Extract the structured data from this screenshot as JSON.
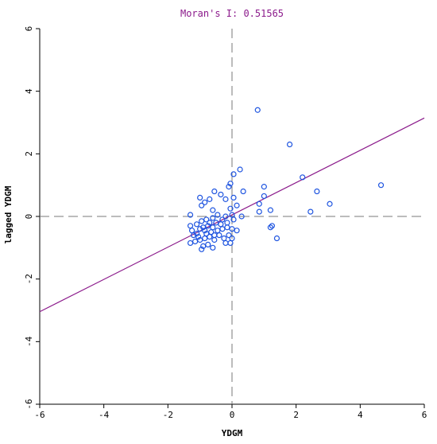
{
  "chart_data": {
    "type": "scatter",
    "title": "Moran's I: 0.51565",
    "xlabel": "YDGM",
    "ylabel": "lagged YDGM",
    "xlim": [
      -6,
      6
    ],
    "ylim": [
      -6,
      6
    ],
    "xticks": [
      -6,
      -4,
      -2,
      0,
      2,
      4,
      6
    ],
    "yticks": [
      -6,
      -4,
      -2,
      0,
      2,
      4,
      6
    ],
    "grid": false,
    "colors": {
      "points": "#1f55e0",
      "regression": "#8b1a8b",
      "axes": "#000000",
      "quadrant_lines": "#7a7a7a",
      "title": "#8b1a8b"
    },
    "regression": {
      "slope": 0.51565,
      "intercept": 0.05
    },
    "points": [
      {
        "x": 0.8,
        "y": 3.4
      },
      {
        "x": 1.8,
        "y": 2.3
      },
      {
        "x": 4.65,
        "y": 1.0
      },
      {
        "x": 2.2,
        "y": 1.25
      },
      {
        "x": 2.65,
        "y": 0.8
      },
      {
        "x": 3.05,
        "y": 0.4
      },
      {
        "x": 2.45,
        "y": 0.15
      },
      {
        "x": 1.4,
        "y": -0.7
      },
      {
        "x": 1.2,
        "y": -0.35
      },
      {
        "x": 1.25,
        "y": -0.3
      },
      {
        "x": 1.2,
        "y": 0.2
      },
      {
        "x": 0.85,
        "y": 0.4
      },
      {
        "x": 0.85,
        "y": 0.15
      },
      {
        "x": 1.0,
        "y": 0.95
      },
      {
        "x": 1.0,
        "y": 0.65
      },
      {
        "x": 0.25,
        "y": 1.5
      },
      {
        "x": 0.35,
        "y": 0.8
      },
      {
        "x": 0.05,
        "y": 1.35
      },
      {
        "x": -0.05,
        "y": 1.05
      },
      {
        "x": -0.1,
        "y": 0.95
      },
      {
        "x": 0.05,
        "y": 0.6
      },
      {
        "x": -0.2,
        "y": 0.55
      },
      {
        "x": -0.35,
        "y": 0.7
      },
      {
        "x": -0.55,
        "y": 0.8
      },
      {
        "x": -0.7,
        "y": 0.55
      },
      {
        "x": -0.85,
        "y": 0.45
      },
      {
        "x": -1.0,
        "y": 0.6
      },
      {
        "x": -0.95,
        "y": 0.35
      },
      {
        "x": -1.3,
        "y": 0.05
      },
      {
        "x": -0.6,
        "y": 0.2
      },
      {
        "x": -0.45,
        "y": 0.05
      },
      {
        "x": -0.2,
        "y": 0.0
      },
      {
        "x": 0.3,
        "y": 0.0
      },
      {
        "x": 0.0,
        "y": 0.05
      },
      {
        "x": -0.05,
        "y": 0.25
      },
      {
        "x": 0.15,
        "y": 0.35
      },
      {
        "x": -0.3,
        "y": -0.1
      },
      {
        "x": -0.6,
        "y": -0.05
      },
      {
        "x": -0.8,
        "y": -0.1
      },
      {
        "x": -0.95,
        "y": -0.15
      },
      {
        "x": -1.1,
        "y": -0.25
      },
      {
        "x": -1.3,
        "y": -0.3
      },
      {
        "x": -1.25,
        "y": -0.45
      },
      {
        "x": -1.1,
        "y": -0.55
      },
      {
        "x": -1.0,
        "y": -0.4
      },
      {
        "x": -0.85,
        "y": -0.45
      },
      {
        "x": -0.75,
        "y": -0.3
      },
      {
        "x": -0.6,
        "y": -0.35
      },
      {
        "x": -0.45,
        "y": -0.45
      },
      {
        "x": -0.3,
        "y": -0.4
      },
      {
        "x": -0.15,
        "y": -0.35
      },
      {
        "x": 0.0,
        "y": -0.4
      },
      {
        "x": 0.15,
        "y": -0.45
      },
      {
        "x": -0.1,
        "y": -0.6
      },
      {
        "x": -0.25,
        "y": -0.7
      },
      {
        "x": -0.4,
        "y": -0.6
      },
      {
        "x": -0.55,
        "y": -0.75
      },
      {
        "x": -0.7,
        "y": -0.65
      },
      {
        "x": -0.85,
        "y": -0.7
      },
      {
        "x": -1.0,
        "y": -0.75
      },
      {
        "x": -1.15,
        "y": -0.8
      },
      {
        "x": -1.3,
        "y": -0.85
      },
      {
        "x": -0.9,
        "y": -0.95
      },
      {
        "x": -0.75,
        "y": -0.9
      },
      {
        "x": -0.6,
        "y": -1.0
      },
      {
        "x": -0.95,
        "y": -1.05
      },
      {
        "x": -0.2,
        "y": -0.85
      },
      {
        "x": 0.0,
        "y": -0.7
      },
      {
        "x": -0.05,
        "y": -0.85
      },
      {
        "x": -1.2,
        "y": -0.6
      },
      {
        "x": -0.65,
        "y": -0.5
      },
      {
        "x": -0.8,
        "y": -0.55
      },
      {
        "x": -0.5,
        "y": -0.2
      },
      {
        "x": -0.35,
        "y": -0.25
      },
      {
        "x": -0.15,
        "y": -0.2
      },
      {
        "x": 0.05,
        "y": -0.1
      },
      {
        "x": -1.05,
        "y": -0.65
      },
      {
        "x": -0.9,
        "y": -0.35
      },
      {
        "x": -0.7,
        "y": -0.2
      },
      {
        "x": -0.55,
        "y": -0.6
      }
    ]
  }
}
